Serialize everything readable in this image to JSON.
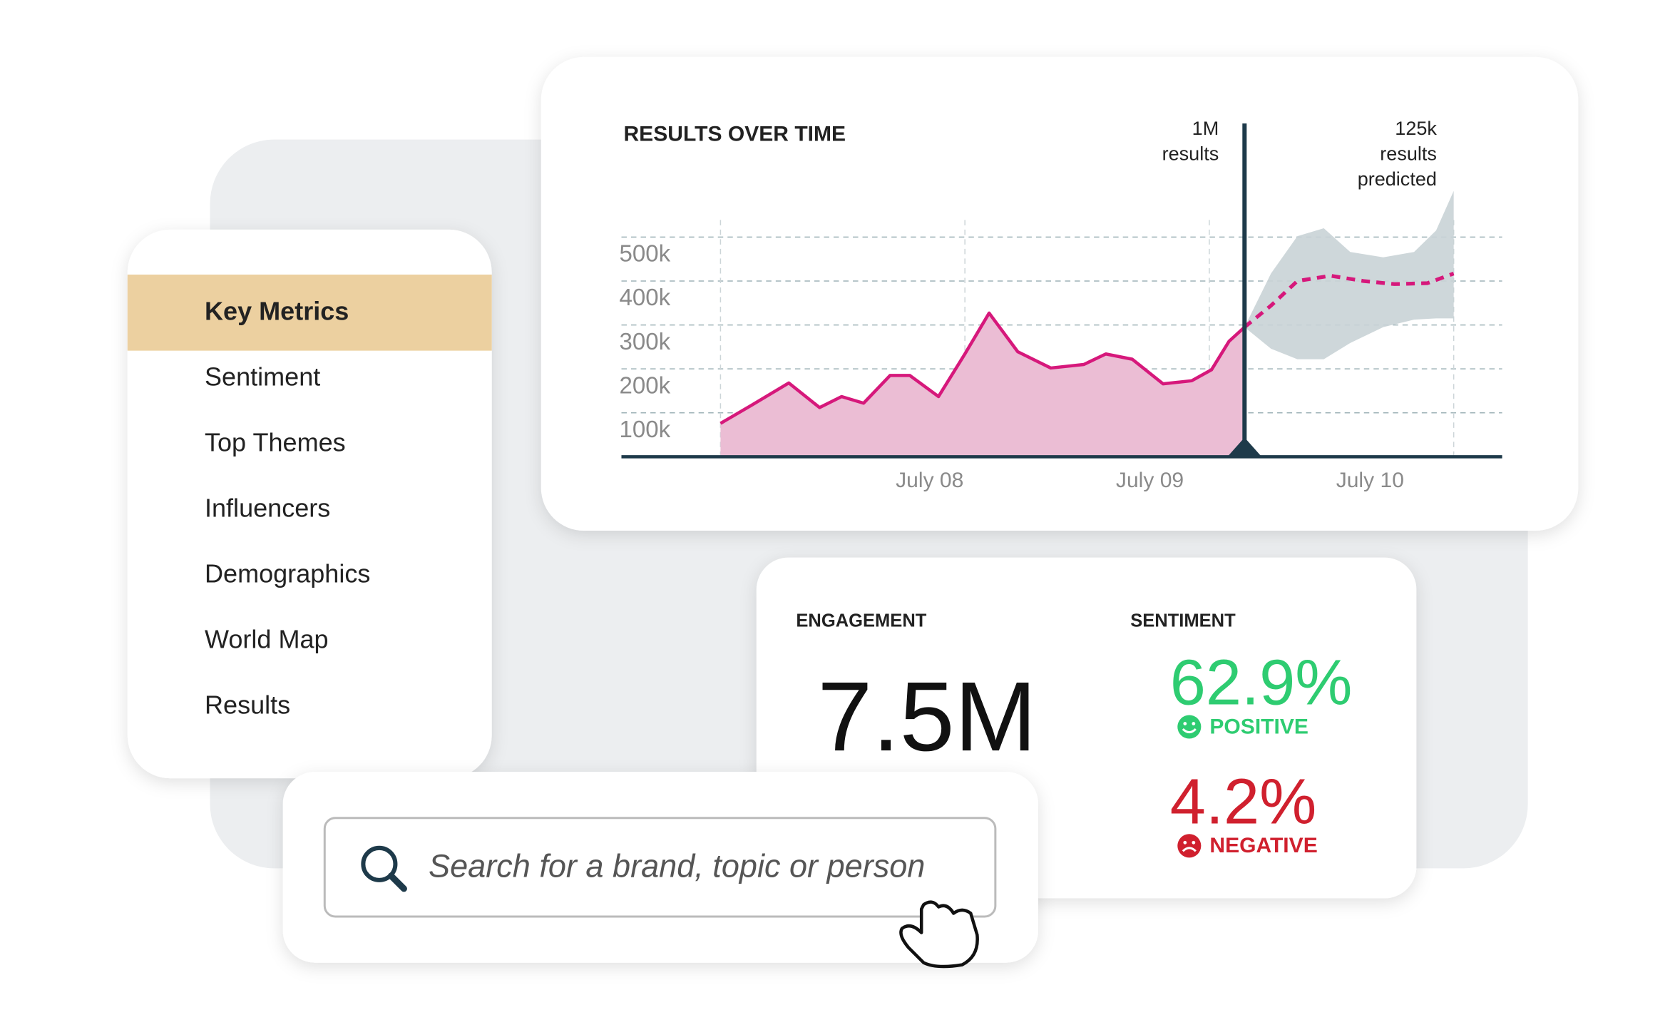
{
  "nav": {
    "items": [
      "Key Metrics",
      "Sentiment",
      "Top Themes",
      "Influencers",
      "Demographics",
      "World Map",
      "Results"
    ]
  },
  "chart_data": {
    "type": "area",
    "title": "RESULTS OVER TIME",
    "xlim": [
      6.6,
      10.6
    ],
    "ylim": [
      0,
      750000
    ],
    "xticks": [
      {
        "value": 8,
        "label": "July 08"
      },
      {
        "value": 9,
        "label": "July 09"
      },
      {
        "value": 10,
        "label": "July 10"
      }
    ],
    "yticks": [
      {
        "value": 100000,
        "label": "100k"
      },
      {
        "value": 200000,
        "label": "200k"
      },
      {
        "value": 300000,
        "label": "300k"
      },
      {
        "value": 400000,
        "label": "400k"
      },
      {
        "value": 500000,
        "label": "500k"
      }
    ],
    "x_grid": [
      7.05,
      8.16,
      9.27,
      10.38
    ],
    "grid": true,
    "actual": {
      "color": "#d6187b",
      "fill": "#ebbdd4",
      "x": [
        7.05,
        7.19,
        7.36,
        7.5,
        7.6,
        7.7,
        7.82,
        7.91,
        8.04,
        8.16,
        8.27,
        8.4,
        8.55,
        8.7,
        8.8,
        8.92,
        9.06,
        9.19,
        9.28,
        9.36,
        9.43
      ],
      "values": [
        76000,
        117000,
        168000,
        112000,
        137000,
        122000,
        185000,
        185000,
        137000,
        234000,
        327000,
        239000,
        202000,
        210000,
        234000,
        222000,
        166000,
        173000,
        198000,
        263000,
        295000
      ]
    },
    "predicted": {
      "color": "#d6187b",
      "x": [
        9.43,
        9.55,
        9.67,
        9.82,
        9.97,
        10.11,
        10.26,
        10.38
      ],
      "values": [
        295000,
        344000,
        400000,
        412000,
        400000,
        393000,
        395000,
        417000
      ]
    },
    "band": {
      "color": "#c9d3d6",
      "x": [
        9.43,
        9.55,
        9.67,
        9.79,
        9.91,
        10.06,
        10.2,
        10.3,
        10.38
      ],
      "upper": [
        295000,
        417000,
        502000,
        520000,
        466000,
        454000,
        466000,
        515000,
        605000
      ],
      "lower": [
        295000,
        246000,
        222000,
        222000,
        259000,
        295000,
        312000,
        315000,
        315000
      ]
    },
    "marker": {
      "x": 9.43,
      "label": [
        "1M",
        "results"
      ]
    },
    "forecast_label": [
      "125k",
      "results",
      "predicted"
    ]
  },
  "metrics": {
    "engagement": {
      "title": "ENGAGEMENT",
      "value": "7.5M"
    },
    "sentiment": {
      "title": "SENTIMENT",
      "positive": {
        "value": "62.9%",
        "label": "POSITIVE"
      },
      "negative": {
        "value": "4.2%",
        "label": "NEGATIVE"
      }
    }
  },
  "search": {
    "placeholder": "Search for a brand, topic or person"
  }
}
